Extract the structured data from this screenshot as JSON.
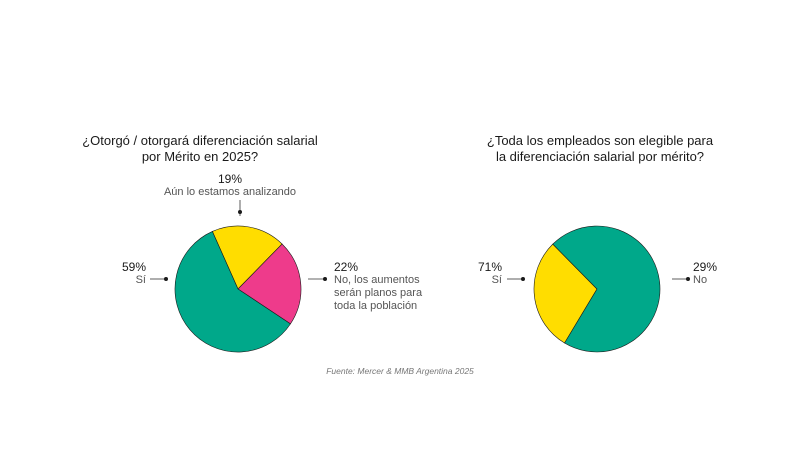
{
  "chart_data": [
    {
      "type": "pie",
      "title": [
        "¿Otorgó / otorgará diferenciación salarial",
        "por Mérito en 2025?"
      ],
      "slices": [
        {
          "pct_label": "59%",
          "label": [
            "Sí"
          ],
          "value": 59,
          "color": "#00A88A"
        },
        {
          "pct_label": "19%",
          "label": [
            "Aún lo estamos analizando"
          ],
          "value": 19,
          "color": "#FFDD00"
        },
        {
          "pct_label": "22%",
          "label": [
            "No, los aumentos",
            "serán planos para",
            "toda la población"
          ],
          "value": 22,
          "color": "#EE3B8B"
        }
      ]
    },
    {
      "type": "pie",
      "title": [
        "¿Toda los empleados son elegible para",
        "la diferenciación salarial por mérito?"
      ],
      "slices": [
        {
          "pct_label": "71%",
          "label": [
            "Sí"
          ],
          "value": 71,
          "color": "#00A88A"
        },
        {
          "pct_label": "29%",
          "label": [
            "No"
          ],
          "value": 29,
          "color": "#FFDD00"
        }
      ]
    }
  ],
  "source": "Fuente: Mercer & MMB Argentina 2025"
}
